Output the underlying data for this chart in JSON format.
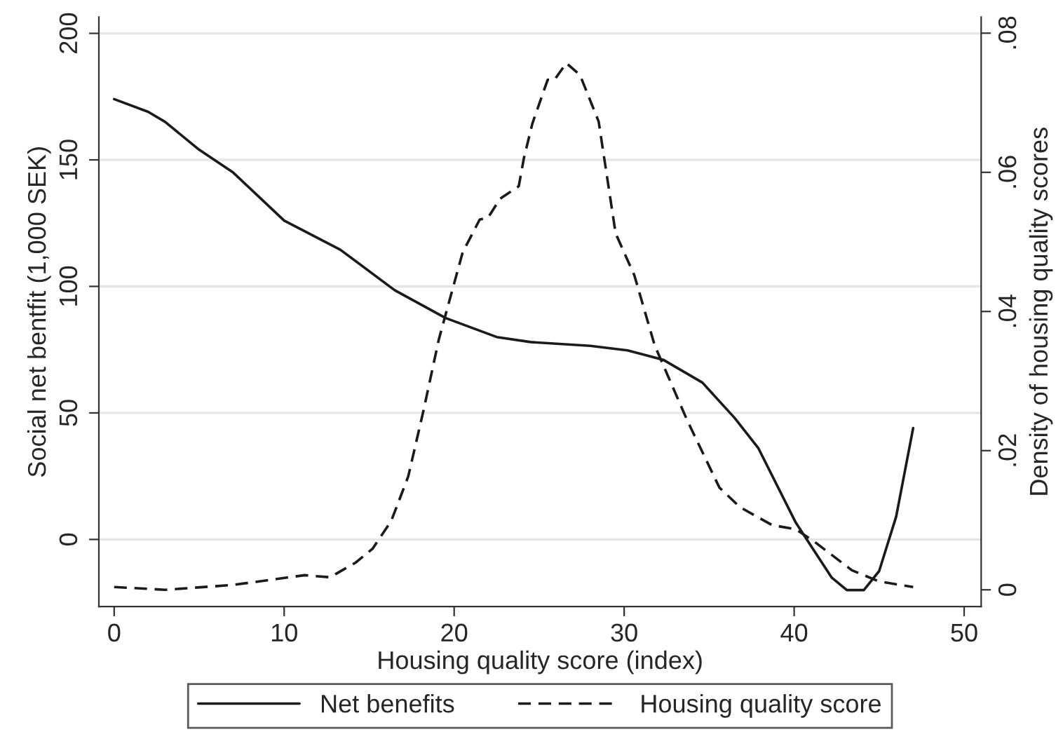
{
  "chart_data": {
    "type": "line",
    "xlabel": "Housing quality score (index)",
    "ylabel": "Social net bentfit (1,000 SEK)",
    "y2label": "Density of housing quality scores",
    "xlim": [
      -0.9,
      51
    ],
    "xticks": [
      0,
      10,
      20,
      30,
      40,
      50
    ],
    "ylim": [
      -26.5,
      206.4
    ],
    "yticks": [
      0,
      50,
      100,
      150,
      200
    ],
    "y2lim": [
      -0.0024,
      0.0823
    ],
    "y2ticks": [
      0,
      {
        "value": 0.02,
        "label": ".02"
      },
      {
        "value": 0.04,
        "label": ".04"
      },
      {
        "value": 0.06,
        "label": ".06"
      },
      {
        "value": 0.08,
        "label": ".08"
      }
    ],
    "grid": "y",
    "legend": "bottom",
    "series": [
      {
        "name": "Net benefits",
        "color": "#1a1a1a",
        "line_style": "solid",
        "x": [
          0,
          2,
          3,
          5,
          7,
          10,
          13.3,
          16.5,
          19.5,
          22.5,
          24.5,
          28,
          30.2,
          32.3,
          34.6,
          36.5,
          37.9,
          40.1,
          42.2,
          43.1,
          44.1,
          45,
          46,
          47
        ],
        "values": [
          174,
          169,
          165,
          154,
          145,
          126,
          114.5,
          98.5,
          87.5,
          80,
          78,
          76.5,
          74.7,
          71,
          62,
          48,
          36,
          6.6,
          -15,
          -20,
          -20,
          -12.5,
          9,
          44
        ]
      },
      {
        "name": "Housing quality score",
        "color": "#1a1a1a",
        "line_style": "dashed",
        "axis": "y2",
        "x": [
          0,
          3,
          7,
          11.2,
          12.7,
          14.2,
          15.2,
          16.3,
          17.3,
          18.2,
          19.1,
          20.5,
          21.5,
          22,
          22.7,
          23.8,
          24.1,
          24.6,
          25.5,
          25.9,
          26.6,
          27.4,
          28.5,
          29.5,
          30.6,
          31.8,
          33.7,
          35.6,
          36.8,
          38.7,
          40.1,
          41.2,
          43.4,
          45,
          47
        ],
        "values": [
          0.0004,
          0,
          0.0007,
          0.0021,
          0.0018,
          0.0039,
          0.0059,
          0.0099,
          0.0163,
          0.0258,
          0.036,
          0.0485,
          0.0532,
          0.0535,
          0.0562,
          0.058,
          0.062,
          0.067,
          0.0733,
          0.0733,
          0.0757,
          0.074,
          0.0673,
          0.0512,
          0.0452,
          0.0351,
          0.0244,
          0.0147,
          0.0119,
          0.0093,
          0.0087,
          0.0069,
          0.0028,
          0.0012,
          0.0004
        ]
      }
    ]
  }
}
